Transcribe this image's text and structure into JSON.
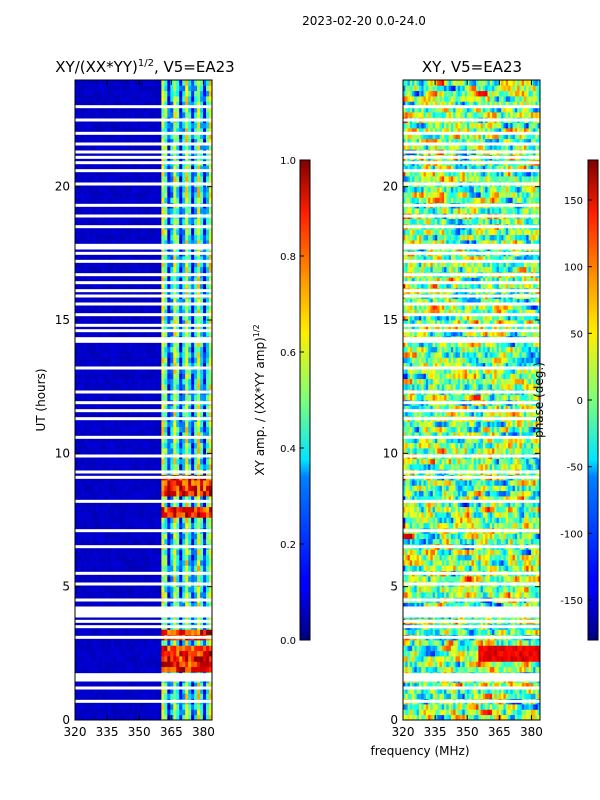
{
  "suptitle": "2023-02-20 0.0-24.0",
  "chart_data": [
    {
      "type": "heatmap",
      "title": "XY/(XX*YY)",
      "title_exponent": "1/2",
      "title_suffix": ", V5=EA23",
      "xlabel": "",
      "ylabel": "UT (hours)",
      "xlim": [
        320,
        384
      ],
      "ylim": [
        0,
        24
      ],
      "xticks": [
        "320",
        "335",
        "350",
        "365",
        "380"
      ],
      "yticks": [
        "0",
        "5",
        "10",
        "15",
        "20"
      ],
      "colorbar": {
        "label": "XY amp. / (XX*YY amp)",
        "label_exponent": "1/2",
        "range": [
          0.0,
          1.0
        ],
        "ticks": [
          "0.0",
          "0.2",
          "0.4",
          "0.6",
          "0.8",
          "1.0"
        ]
      },
      "high_amplitude_hours": [
        2.0,
        2.5,
        3.2,
        7.8,
        8.6,
        9.0
      ],
      "active_band_mhz": [
        360,
        384
      ]
    },
    {
      "type": "heatmap",
      "title": "XY, V5=EA23",
      "xlabel": "frequency (MHz)",
      "ylabel": "",
      "xlim": [
        320,
        384
      ],
      "ylim": [
        0,
        24
      ],
      "xticks": [
        "320",
        "335",
        "350",
        "365",
        "380"
      ],
      "yticks": [
        "0",
        "5",
        "10",
        "15",
        "20"
      ],
      "colorbar": {
        "label": "phase (deg.)",
        "range": [
          -180,
          180
        ],
        "ticks": [
          "-150",
          "-100",
          "-50",
          "0",
          "50",
          "100",
          "150"
        ]
      }
    }
  ],
  "flagged_hours": [
    0.7,
    1.2,
    1.5,
    1.6,
    1.7,
    3.1,
    3.5,
    3.7,
    3.9,
    4.0,
    4.1,
    4.2,
    4.5,
    5.1,
    5.5,
    6.5,
    7.1,
    8.2,
    9.1,
    9.3,
    9.9,
    10.6,
    11.3,
    11.6,
    11.9,
    12.3,
    13.2,
    14.2,
    14.3,
    14.6,
    14.8,
    15.2,
    15.6,
    15.9,
    16.1,
    16.4,
    16.7,
    17.2,
    17.5,
    17.7,
    17.8,
    18.5,
    18.9,
    19.3,
    20.1,
    20.6,
    20.9,
    21.1,
    21.3,
    21.6,
    22.0,
    22.5,
    23.0
  ],
  "colors": {
    "low": "#00008f",
    "background": "#ffffff"
  }
}
